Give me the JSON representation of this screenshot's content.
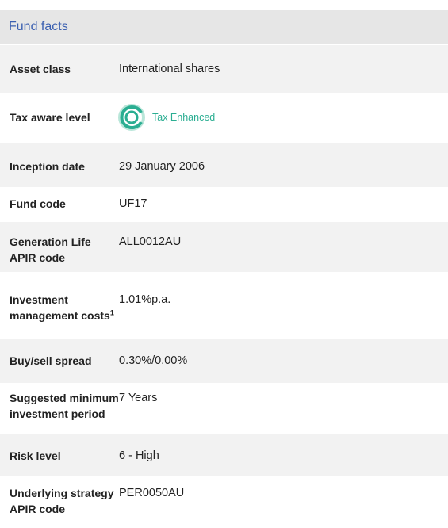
{
  "header": {
    "title": "Fund facts"
  },
  "rows": [
    {
      "label": "Asset class",
      "value": "International shares"
    },
    {
      "label": "Tax aware level",
      "value": "Tax Enhanced"
    },
    {
      "label": "Inception date",
      "value": "29 January 2006"
    },
    {
      "label": "Fund code",
      "value": "UF17"
    },
    {
      "label": "Generation Life APIR code",
      "value": "ALL0012AU"
    },
    {
      "label": "Investment management costs",
      "footnote": "1",
      "value": "1.01%p.a."
    },
    {
      "label": "Buy/sell spread",
      "value": "0.30%/0.00%"
    },
    {
      "label": "Suggested minimum investment period",
      "value": "7 Years"
    },
    {
      "label": "Risk level",
      "value": "6 - High"
    },
    {
      "label": "Underlying strategy APIR code",
      "value": "PER0050AU"
    }
  ]
}
